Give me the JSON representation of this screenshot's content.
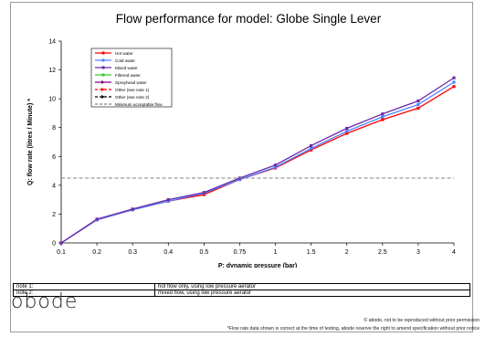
{
  "chart_data": {
    "type": "line",
    "title": "Flow performance for model: Globe Single Lever",
    "xlabel": "P: dynamic pressure (bar)",
    "ylabel": "Q: flow rate (litres / Minute) *",
    "categories": [
      "0.1",
      "0.2",
      "0.3",
      "0.4",
      "0.5",
      "0.75",
      "1",
      "1.5",
      "2",
      "2.5",
      "3",
      "4"
    ],
    "ylim": [
      0,
      14
    ],
    "yticks": [
      0,
      2,
      4,
      6,
      8,
      10,
      12,
      14
    ],
    "grid": false,
    "legend_position": "top-left",
    "series": [
      {
        "name": "Hot water",
        "color": "#ff0000",
        "marker": "square",
        "values": [
          0,
          1.6,
          2.3,
          2.9,
          3.35,
          4.4,
          5.2,
          6.45,
          7.6,
          8.55,
          9.35,
          10.85
        ]
      },
      {
        "name": "Cold water",
        "color": "#4f81ff",
        "marker": "square",
        "values": [
          0,
          1.6,
          2.3,
          2.9,
          3.45,
          4.4,
          5.25,
          6.55,
          7.75,
          8.75,
          9.6,
          11.15
        ]
      },
      {
        "name": "Mixed water",
        "color": "#6a2ca8",
        "marker": "square",
        "values": [
          0,
          1.65,
          2.35,
          3.0,
          3.5,
          4.5,
          5.4,
          6.75,
          7.95,
          8.95,
          9.85,
          11.45
        ]
      },
      {
        "name": "Filtered water",
        "color": "#33cc33",
        "marker": "square",
        "values": null
      },
      {
        "name": "Sprayhead water",
        "color": "#800080",
        "marker": "arrow",
        "values": null
      },
      {
        "name": "Other (see note 1)",
        "color": "#ff0000",
        "marker": "arrow",
        "dashed": true,
        "values": null
      },
      {
        "name": "Other (see note 2)",
        "color": "#000000",
        "marker": "arrow",
        "dashed": true,
        "values": null
      },
      {
        "name": "Minimum acceptable flow",
        "color": "#808080",
        "marker": "none",
        "dashed": true,
        "values": [
          4.5,
          4.5,
          4.5,
          4.5,
          4.5,
          4.5,
          4.5,
          4.5,
          4.5,
          4.5,
          4.5,
          4.5
        ]
      }
    ]
  },
  "notes": [
    {
      "label": "note 1:",
      "text": "hot flow only, using low pressure aerator"
    },
    {
      "label": "note 2:",
      "text": "mixed flow, using low pressure aerator"
    }
  ],
  "brand": {
    "logo_text": "obode"
  },
  "footer": {
    "copyright": "© abode, not to be reproduced without prior permission",
    "disclaimer": "*Flow rate data shown is correct at the time of testing, abode reserve the right to amend specification without prior notice"
  }
}
